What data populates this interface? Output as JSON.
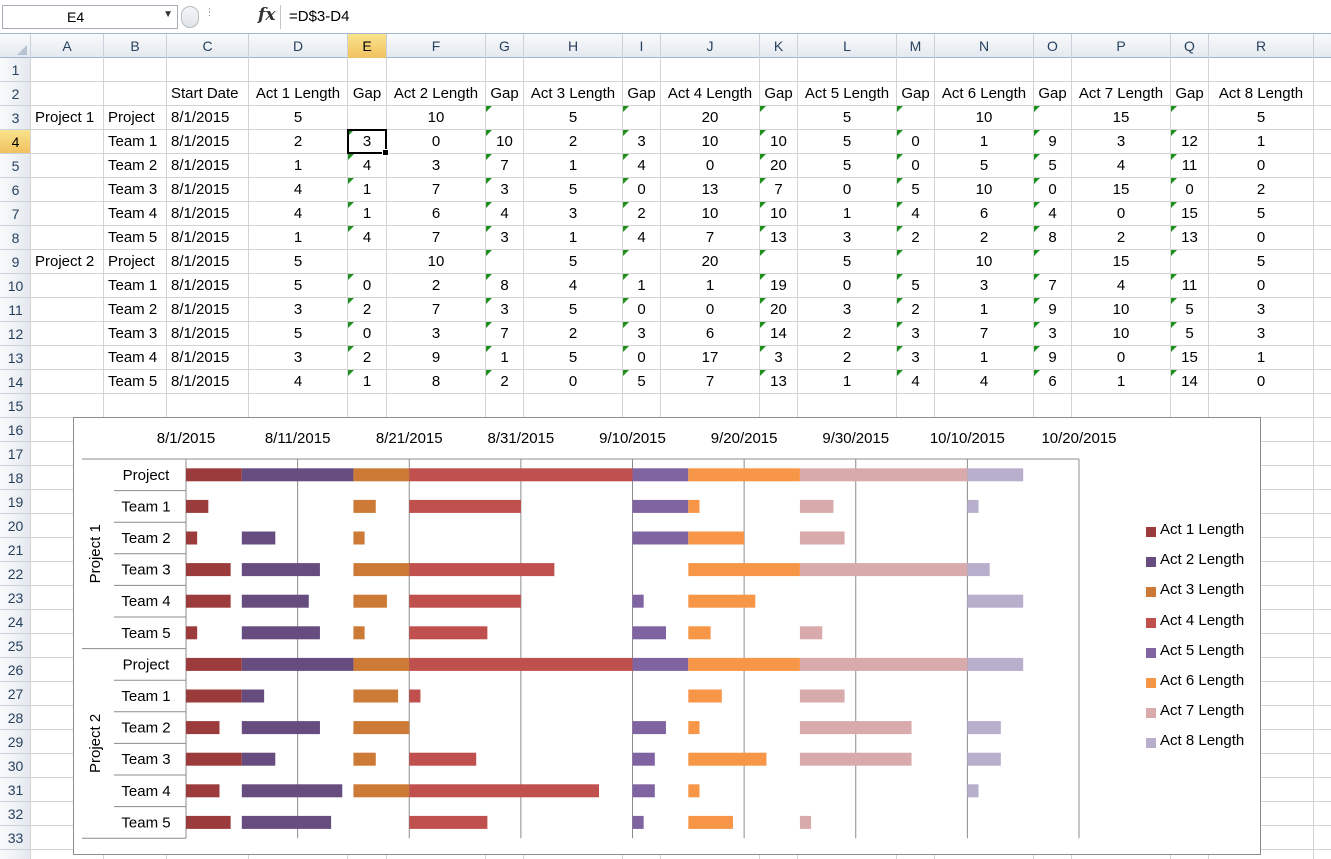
{
  "formula_bar": {
    "name_box": "E4",
    "formula": "=D$3-D4"
  },
  "columns": [
    "A",
    "B",
    "C",
    "D",
    "E",
    "F",
    "G",
    "H",
    "I",
    "J",
    "K",
    "L",
    "M",
    "N",
    "O",
    "P",
    "Q",
    "R"
  ],
  "selected_column": "E",
  "rows": [
    "1",
    "2",
    "3",
    "4",
    "5",
    "6",
    "7",
    "8",
    "9",
    "10",
    "11",
    "12",
    "13",
    "14",
    "15",
    "16",
    "17",
    "18",
    "19",
    "20",
    "21",
    "22",
    "23",
    "24",
    "25",
    "26",
    "27",
    "28",
    "29",
    "30",
    "31",
    "32",
    "33"
  ],
  "selected_row": "4",
  "sheet": {
    "headers": [
      "Start Date",
      "Act 1 Length",
      "Gap",
      "Act 2 Length",
      "Gap",
      "Act 3 Length",
      "Gap",
      "Act 4 Length",
      "Gap",
      "Act 5 Length",
      "Gap",
      "Act 6 Length",
      "Gap",
      "Act 7 Length",
      "Gap",
      "Act 8 Length"
    ],
    "rows": [
      [
        "Project 1",
        "Project",
        "8/1/2015",
        "5",
        "",
        "10",
        "",
        "5",
        "",
        "20",
        "",
        "5",
        "",
        "10",
        "",
        "15",
        "",
        "5"
      ],
      [
        "",
        "Team 1",
        "8/1/2015",
        "2",
        "3",
        "0",
        "10",
        "2",
        "3",
        "10",
        "10",
        "5",
        "0",
        "1",
        "9",
        "3",
        "12",
        "1"
      ],
      [
        "",
        "Team 2",
        "8/1/2015",
        "1",
        "4",
        "3",
        "7",
        "1",
        "4",
        "0",
        "20",
        "5",
        "0",
        "5",
        "5",
        "4",
        "11",
        "0"
      ],
      [
        "",
        "Team 3",
        "8/1/2015",
        "4",
        "1",
        "7",
        "3",
        "5",
        "0",
        "13",
        "7",
        "0",
        "5",
        "10",
        "0",
        "15",
        "0",
        "2"
      ],
      [
        "",
        "Team 4",
        "8/1/2015",
        "4",
        "1",
        "6",
        "4",
        "3",
        "2",
        "10",
        "10",
        "1",
        "4",
        "6",
        "4",
        "0",
        "15",
        "5"
      ],
      [
        "",
        "Team 5",
        "8/1/2015",
        "1",
        "4",
        "7",
        "3",
        "1",
        "4",
        "7",
        "13",
        "3",
        "2",
        "2",
        "8",
        "2",
        "13",
        "0"
      ],
      [
        "Project 2",
        "Project",
        "8/1/2015",
        "5",
        "",
        "10",
        "",
        "5",
        "",
        "20",
        "",
        "5",
        "",
        "10",
        "",
        "15",
        "",
        "5"
      ],
      [
        "",
        "Team 1",
        "8/1/2015",
        "5",
        "0",
        "2",
        "8",
        "4",
        "1",
        "1",
        "19",
        "0",
        "5",
        "3",
        "7",
        "4",
        "11",
        "0"
      ],
      [
        "",
        "Team 2",
        "8/1/2015",
        "3",
        "2",
        "7",
        "3",
        "5",
        "0",
        "0",
        "20",
        "3",
        "2",
        "1",
        "9",
        "10",
        "5",
        "3"
      ],
      [
        "",
        "Team 3",
        "8/1/2015",
        "5",
        "0",
        "3",
        "7",
        "2",
        "3",
        "6",
        "14",
        "2",
        "3",
        "7",
        "3",
        "10",
        "5",
        "3"
      ],
      [
        "",
        "Team 4",
        "8/1/2015",
        "3",
        "2",
        "9",
        "1",
        "5",
        "0",
        "17",
        "3",
        "2",
        "3",
        "1",
        "9",
        "0",
        "15",
        "1"
      ],
      [
        "",
        "Team 5",
        "8/1/2015",
        "4",
        "1",
        "8",
        "2",
        "0",
        "5",
        "7",
        "13",
        "1",
        "4",
        "4",
        "6",
        "1",
        "14",
        "0"
      ]
    ]
  },
  "chart_data": {
    "type": "bar",
    "orientation": "horizontal-stacked-gantt",
    "x_axis": {
      "position": "top",
      "tick_labels": [
        "8/1/2015",
        "8/11/2015",
        "8/21/2015",
        "8/31/2015",
        "9/10/2015",
        "9/20/2015",
        "9/30/2015",
        "10/10/2015",
        "10/20/2015"
      ],
      "range": [
        "8/1/2015",
        "10/20/2015"
      ],
      "major_unit_days": 10,
      "gridlines": true
    },
    "groups": [
      {
        "name": "Project 1",
        "categories": [
          "Project",
          "Team 1",
          "Team 2",
          "Team 3",
          "Team 4",
          "Team 5"
        ]
      },
      {
        "name": "Project 2",
        "categories": [
          "Project",
          "Team 1",
          "Team 2",
          "Team 3",
          "Team 4",
          "Team 5"
        ]
      }
    ],
    "start_date": "8/1/2015",
    "gap_series_visible": false,
    "series": [
      {
        "name": "Act 1 Length",
        "color": "#9b3b3b",
        "values": [
          [
            5,
            2,
            1,
            4,
            4,
            1
          ],
          [
            5,
            5,
            3,
            5,
            3,
            4
          ]
        ]
      },
      {
        "name": "Gap",
        "color": "none",
        "values": [
          [
            0,
            3,
            4,
            1,
            1,
            4
          ],
          [
            0,
            0,
            2,
            0,
            2,
            1
          ]
        ]
      },
      {
        "name": "Act 2 Length",
        "color": "#674d7f",
        "values": [
          [
            10,
            0,
            3,
            7,
            6,
            7
          ],
          [
            10,
            2,
            7,
            3,
            9,
            8
          ]
        ]
      },
      {
        "name": "Gap",
        "color": "none",
        "values": [
          [
            0,
            10,
            7,
            3,
            4,
            3
          ],
          [
            0,
            8,
            3,
            7,
            1,
            2
          ]
        ]
      },
      {
        "name": "Act 3 Length",
        "color": "#cc7a35",
        "values": [
          [
            5,
            2,
            1,
            5,
            3,
            1
          ],
          [
            5,
            4,
            5,
            2,
            5,
            0
          ]
        ]
      },
      {
        "name": "Gap",
        "color": "none",
        "values": [
          [
            0,
            3,
            4,
            0,
            2,
            4
          ],
          [
            0,
            1,
            0,
            3,
            0,
            5
          ]
        ]
      },
      {
        "name": "Act 4 Length",
        "color": "#c0504d",
        "values": [
          [
            20,
            10,
            0,
            13,
            10,
            7
          ],
          [
            20,
            1,
            0,
            6,
            17,
            7
          ]
        ]
      },
      {
        "name": "Gap",
        "color": "none",
        "values": [
          [
            0,
            10,
            20,
            7,
            10,
            13
          ],
          [
            0,
            19,
            20,
            14,
            3,
            13
          ]
        ]
      },
      {
        "name": "Act 5 Length",
        "color": "#8064a2",
        "values": [
          [
            5,
            5,
            5,
            0,
            1,
            3
          ],
          [
            5,
            0,
            3,
            2,
            2,
            1
          ]
        ]
      },
      {
        "name": "Gap",
        "color": "none",
        "values": [
          [
            0,
            0,
            0,
            5,
            4,
            2
          ],
          [
            0,
            5,
            2,
            3,
            3,
            4
          ]
        ]
      },
      {
        "name": "Act 6 Length",
        "color": "#f79646",
        "values": [
          [
            10,
            1,
            5,
            10,
            6,
            2
          ],
          [
            10,
            3,
            1,
            7,
            1,
            4
          ]
        ]
      },
      {
        "name": "Gap",
        "color": "none",
        "values": [
          [
            0,
            9,
            5,
            0,
            4,
            8
          ],
          [
            0,
            7,
            9,
            3,
            9,
            6
          ]
        ]
      },
      {
        "name": "Act 7 Length",
        "color": "#d9aaab",
        "values": [
          [
            15,
            3,
            4,
            15,
            0,
            2
          ],
          [
            15,
            4,
            10,
            10,
            0,
            1
          ]
        ]
      },
      {
        "name": "Gap",
        "color": "none",
        "values": [
          [
            0,
            12,
            11,
            0,
            15,
            13
          ],
          [
            0,
            11,
            5,
            5,
            15,
            14
          ]
        ]
      },
      {
        "name": "Act 8 Length",
        "color": "#b7afcc",
        "values": [
          [
            5,
            1,
            0,
            2,
            5,
            0
          ],
          [
            5,
            0,
            3,
            3,
            1,
            0
          ]
        ]
      }
    ],
    "legend": {
      "position": "right",
      "entries": [
        "Act 1 Length",
        "Act 2 Length",
        "Act 3 Length",
        "Act 4 Length",
        "Act 5 Length",
        "Act 6 Length",
        "Act 7 Length",
        "Act 8 Length"
      ]
    }
  }
}
